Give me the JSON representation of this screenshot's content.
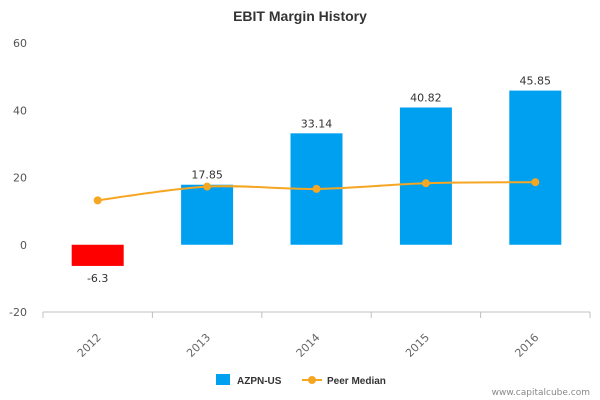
{
  "chart_data": {
    "type": "bar",
    "title": "EBIT Margin History",
    "xlabel": "",
    "ylabel": "",
    "categories": [
      "2012",
      "2013",
      "2014",
      "2015",
      "2016"
    ],
    "ylim": [
      -20,
      60
    ],
    "yticks": [
      60,
      40,
      20,
      0,
      -20
    ],
    "grid": false,
    "legend_position": "bottom",
    "series": [
      {
        "name": "AZPN-US",
        "kind": "bar",
        "values": [
          -6.3,
          17.85,
          33.14,
          40.82,
          45.85
        ],
        "labels": [
          "-6.3",
          "17.85",
          "33.14",
          "40.82",
          "45.85"
        ],
        "color": "#00a0f0",
        "negative_color": "#ff0000"
      },
      {
        "name": "Peer Median",
        "kind": "line",
        "values": [
          13.2,
          17.3,
          16.6,
          18.3,
          18.6
        ],
        "color": "#f5a623"
      }
    ]
  },
  "credit": "www.capitalcube.com"
}
